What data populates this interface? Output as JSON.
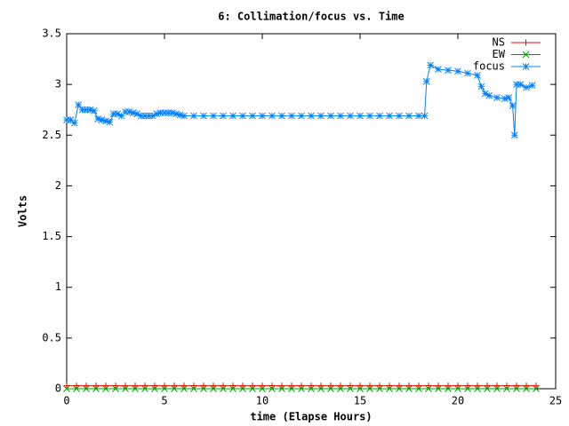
{
  "chart_data": {
    "type": "line",
    "title": "6: Collimation/focus vs. Time",
    "xlabel": "time (Elapse Hours)",
    "ylabel": "Volts",
    "xlim": [
      0,
      25
    ],
    "xticks": [
      0,
      5,
      10,
      15,
      20,
      25
    ],
    "ylim": [
      0,
      3.5
    ],
    "yticks": [
      0,
      0.5,
      1,
      1.5,
      2,
      2.5,
      3,
      3.5
    ],
    "legend": "upper right",
    "series": [
      {
        "name": "NS",
        "color": "#ff0000",
        "marker": "+",
        "x": [
          0,
          0.5,
          1,
          1.5,
          2,
          2.5,
          3,
          3.5,
          4,
          4.5,
          5,
          5.5,
          6,
          6.5,
          7,
          7.5,
          8,
          8.5,
          9,
          9.5,
          10,
          10.5,
          11,
          11.5,
          12,
          12.5,
          13,
          13.5,
          14,
          14.5,
          15,
          15.5,
          16,
          16.5,
          17,
          17.5,
          18,
          18.5,
          19,
          19.5,
          20,
          20.5,
          21,
          21.5,
          22,
          22.5,
          23,
          23.5,
          24
        ],
        "values": [
          0.03,
          0.03,
          0.03,
          0.03,
          0.03,
          0.03,
          0.03,
          0.03,
          0.03,
          0.03,
          0.03,
          0.03,
          0.03,
          0.03,
          0.03,
          0.03,
          0.03,
          0.03,
          0.03,
          0.03,
          0.03,
          0.03,
          0.03,
          0.03,
          0.03,
          0.03,
          0.03,
          0.03,
          0.03,
          0.03,
          0.03,
          0.03,
          0.03,
          0.03,
          0.03,
          0.03,
          0.03,
          0.03,
          0.03,
          0.03,
          0.03,
          0.03,
          0.03,
          0.03,
          0.03,
          0.03,
          0.03,
          0.03,
          0.03
        ]
      },
      {
        "name": "EW",
        "color": "#00a000",
        "marker": "x",
        "x": [
          0,
          0.5,
          1,
          1.5,
          2,
          2.5,
          3,
          3.5,
          4,
          4.5,
          5,
          5.5,
          6,
          6.5,
          7,
          7.5,
          8,
          8.5,
          9,
          9.5,
          10,
          10.5,
          11,
          11.5,
          12,
          12.5,
          13,
          13.5,
          14,
          14.5,
          15,
          15.5,
          16,
          16.5,
          17,
          17.5,
          18,
          18.5,
          19,
          19.5,
          20,
          20.5,
          21,
          21.5,
          22,
          22.5,
          23,
          23.5,
          24
        ],
        "values": [
          0,
          0,
          0,
          0,
          0,
          0,
          0,
          0,
          0,
          0,
          0,
          0,
          0,
          0,
          0,
          0,
          0,
          0,
          0,
          0,
          0,
          0,
          0,
          0,
          0,
          0,
          0,
          0,
          0,
          0,
          0,
          0,
          0,
          0,
          0,
          0,
          0,
          0,
          0,
          0,
          0,
          0,
          0,
          0,
          0,
          0,
          0,
          0,
          0
        ]
      },
      {
        "name": "focus",
        "color": "#0080ff",
        "marker": "*",
        "x": [
          0,
          0.2,
          0.4,
          0.6,
          0.8,
          1,
          1.2,
          1.4,
          1.6,
          1.8,
          2,
          2.2,
          2.4,
          2.6,
          2.8,
          3,
          3.2,
          3.4,
          3.6,
          3.8,
          4,
          4.2,
          4.4,
          4.6,
          4.8,
          5,
          5.2,
          5.4,
          5.6,
          5.8,
          6,
          6.5,
          7,
          7.5,
          8,
          8.5,
          9,
          9.5,
          10,
          10.5,
          11,
          11.5,
          12,
          12.5,
          13,
          13.5,
          14,
          14.5,
          15,
          15.5,
          16,
          16.5,
          17,
          17.5,
          18,
          18.3,
          18.4,
          18.6,
          19,
          19.5,
          20,
          20.5,
          21,
          21.2,
          21.4,
          21.6,
          22,
          22.4,
          22.6,
          22.8,
          22.9,
          23,
          23.2,
          23.5,
          23.8
        ],
        "values": [
          2.65,
          2.65,
          2.62,
          2.8,
          2.75,
          2.75,
          2.75,
          2.74,
          2.66,
          2.65,
          2.64,
          2.63,
          2.71,
          2.71,
          2.69,
          2.73,
          2.73,
          2.72,
          2.71,
          2.69,
          2.69,
          2.69,
          2.69,
          2.71,
          2.72,
          2.72,
          2.72,
          2.72,
          2.71,
          2.7,
          2.69,
          2.69,
          2.69,
          2.69,
          2.69,
          2.69,
          2.69,
          2.69,
          2.69,
          2.69,
          2.69,
          2.69,
          2.69,
          2.69,
          2.69,
          2.69,
          2.69,
          2.69,
          2.69,
          2.69,
          2.69,
          2.69,
          2.69,
          2.69,
          2.69,
          2.69,
          3.03,
          3.19,
          3.15,
          3.14,
          3.13,
          3.11,
          3.09,
          2.98,
          2.91,
          2.89,
          2.87,
          2.86,
          2.87,
          2.79,
          2.5,
          3.0,
          3.0,
          2.97,
          2.99
        ]
      }
    ]
  }
}
